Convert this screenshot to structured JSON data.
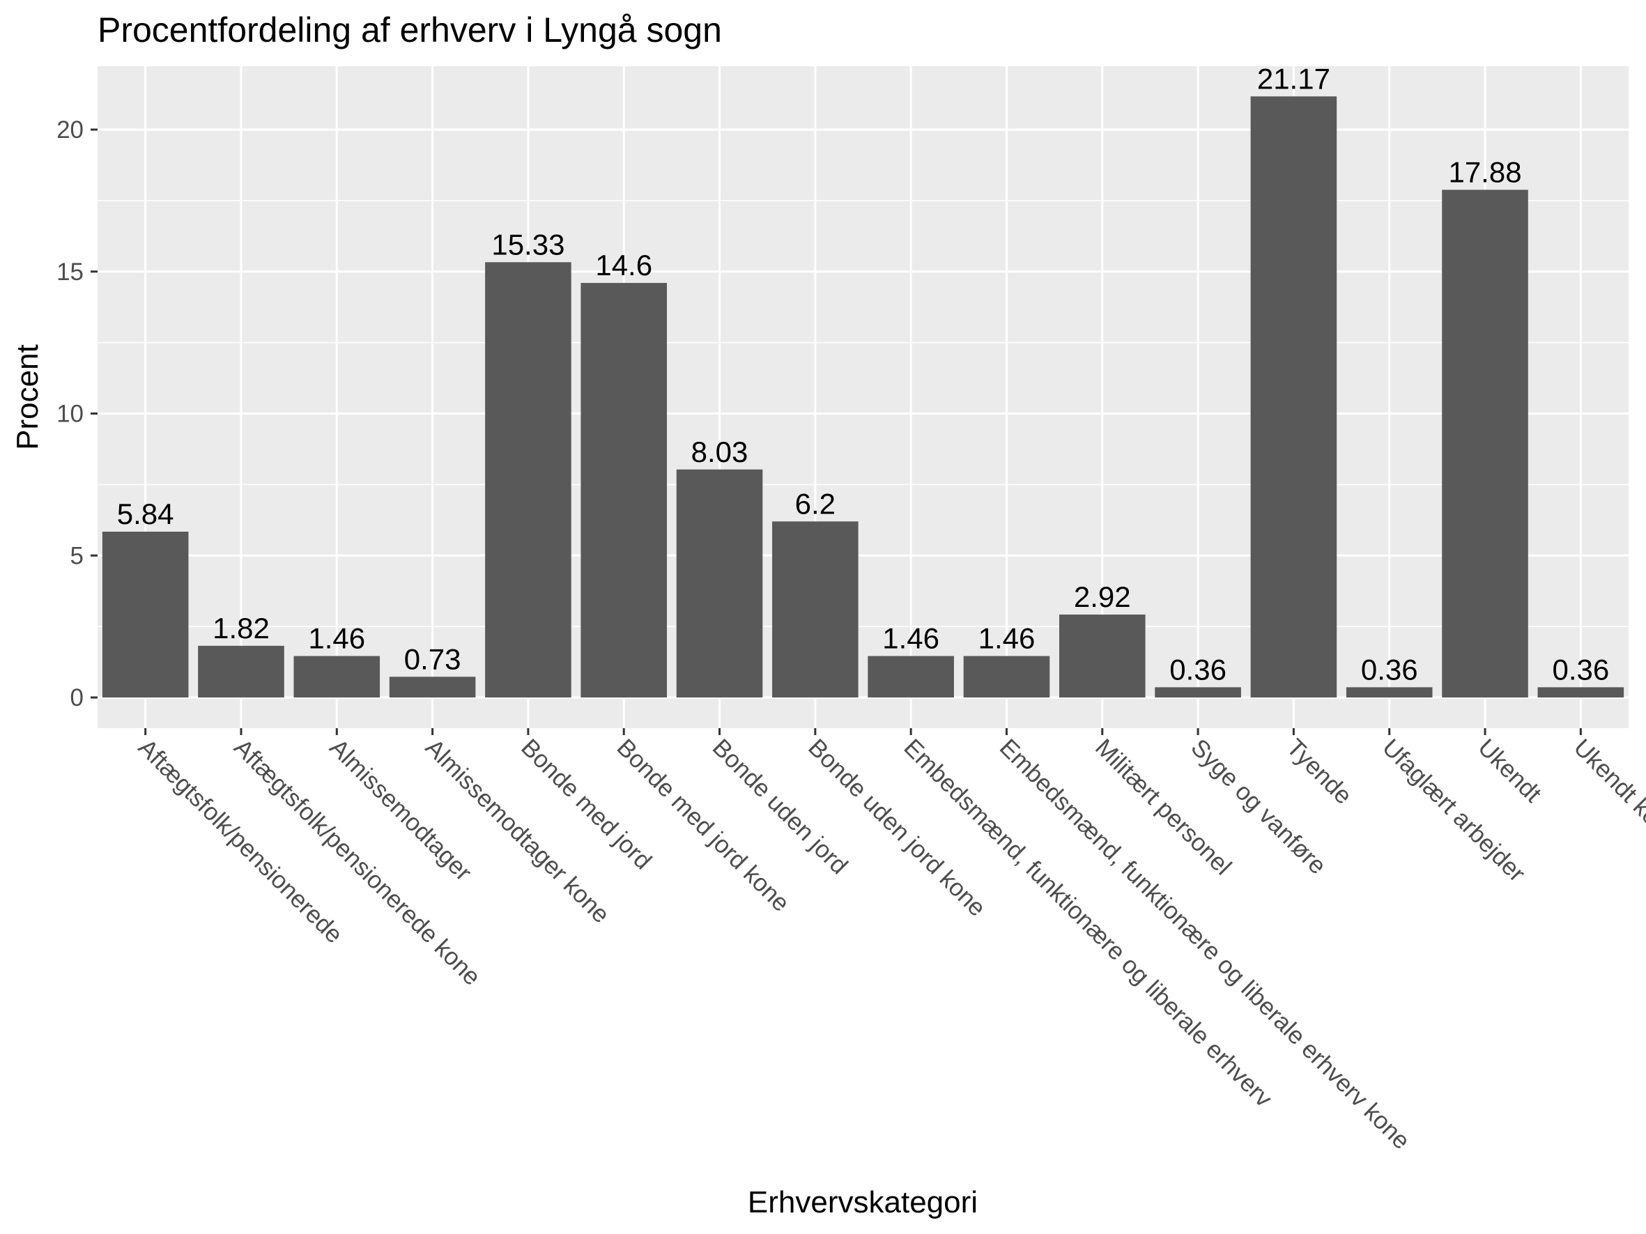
{
  "chart_data": {
    "type": "bar",
    "title": "Procentfordeling af erhverv i Lyngå sogn",
    "xlabel": "Erhvervskategori",
    "ylabel": "Procent",
    "ylim": [
      0,
      22.2
    ],
    "yticks": [
      0,
      5,
      10,
      15,
      20
    ],
    "grid": true,
    "legend": "none",
    "colors": {
      "bar": "#595959",
      "panel": "#ebebeb",
      "grid": "#ffffff",
      "tick_text": "#4d4d4d"
    },
    "categories": [
      "Aftægtsfolk/pensionerede",
      "Aftægtsfolk/pensionerede kone",
      "Almissemodtager",
      "Almissemodtager kone",
      "Bonde med jord",
      "Bonde med jord kone",
      "Bonde uden jord",
      "Bonde uden jord kone",
      "Embedsmænd, funktionære og liberale erhverv",
      "Embedsmænd, funktionære og liberale erhverv kone",
      "Militært personel",
      "Syge og vanføre",
      "Tyende",
      "Ufaglært arbejder",
      "Ukendt",
      "Ukendt kone"
    ],
    "values": [
      5.84,
      1.82,
      1.46,
      0.73,
      15.33,
      14.6,
      8.03,
      6.2,
      1.46,
      1.46,
      2.92,
      0.36,
      21.17,
      0.36,
      17.88,
      0.36
    ],
    "value_labels": [
      "5.84",
      "1.82",
      "1.46",
      "0.73",
      "15.33",
      "14.6",
      "8.03",
      "6.2",
      "1.46",
      "1.46",
      "2.92",
      "0.36",
      "21.17",
      "0.36",
      "17.88",
      "0.36"
    ]
  }
}
